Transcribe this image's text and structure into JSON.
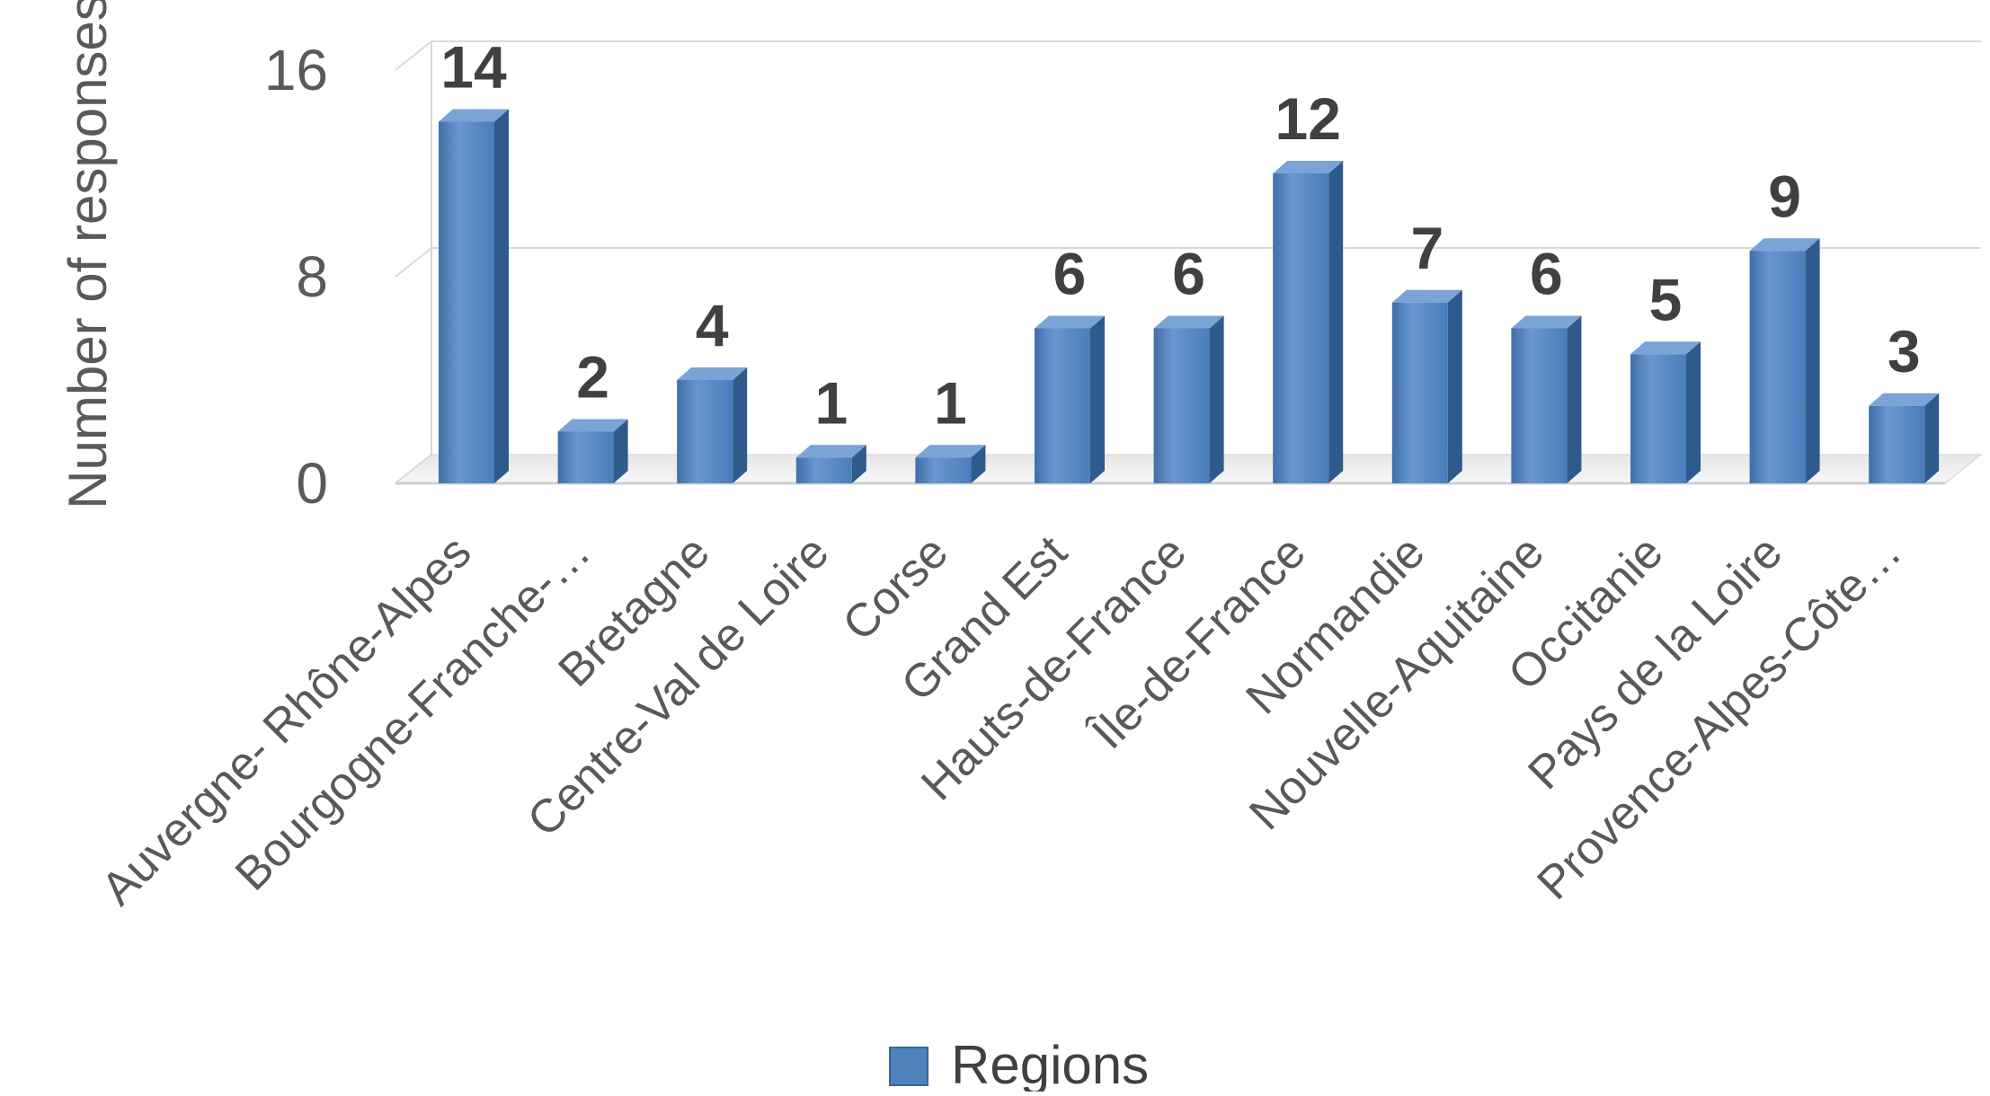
{
  "chart_data": {
    "type": "bar",
    "categories": [
      "Auvergne- Rhône-Alpes",
      "Bourgogne-Franche-…",
      "Bretagne",
      "Centre-Val de Loire",
      "Corse",
      "Grand Est",
      "Hauts-de-France",
      "Île-de-France",
      "Normandie",
      "Nouvelle-Aquitaine",
      "Occitanie",
      "Pays de la Loire",
      "Provence-Alpes-Côte…"
    ],
    "series": [
      {
        "name": "Regions",
        "values": [
          14,
          2,
          4,
          1,
          1,
          6,
          6,
          12,
          7,
          6,
          5,
          9,
          3
        ]
      }
    ],
    "data_labels": [
      "14",
      "2",
      "4",
      "1",
      "1",
      "6",
      "6",
      "12",
      "7",
      "6",
      "5",
      "9",
      "3"
    ],
    "ylabel": "Number of responses",
    "xlabel": "",
    "ylim": [
      0,
      16
    ],
    "yticks": [
      0,
      8,
      16
    ],
    "ytick_labels": [
      "0",
      "8",
      "16"
    ],
    "grid": true,
    "legend": "bottom",
    "colors": {
      "bar_front": "#4f81bd",
      "bar_side": "#2f5a8c",
      "bar_top": "#7aa3d6",
      "grid": "#d9d9d9",
      "axis_text": "#595959",
      "label_text": "#404040"
    }
  }
}
